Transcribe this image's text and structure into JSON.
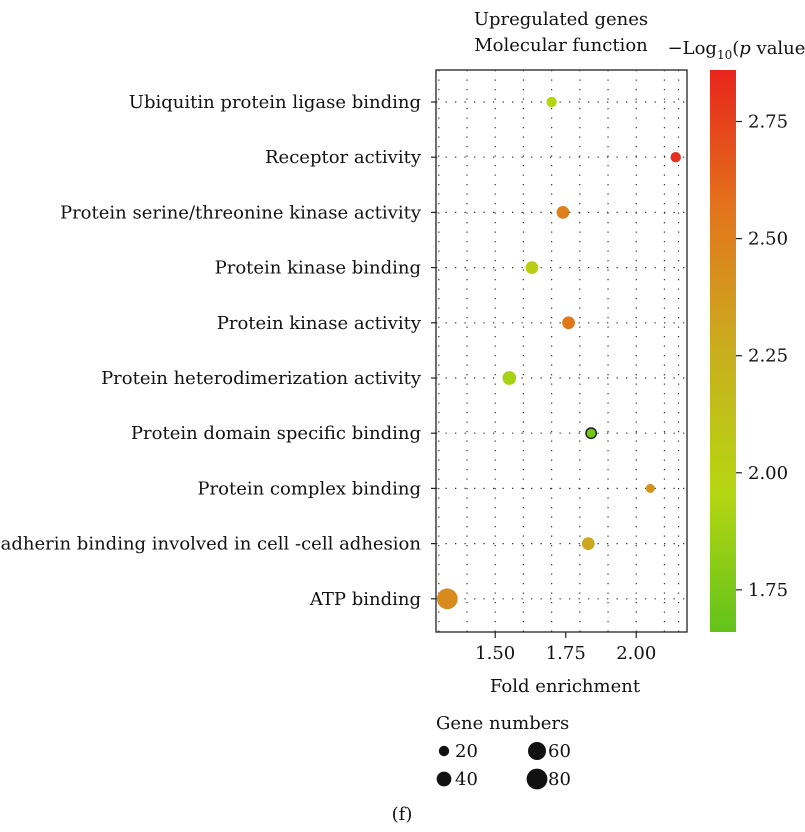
{
  "chart_data": {
    "type": "scatter",
    "title_line1": "Upregulated genes",
    "title_line2": "Molecular function",
    "xlabel": "Fold enrichment",
    "ylabel": "",
    "x_ticks": [
      "1.50",
      "1.75",
      "2.00"
    ],
    "x_tick_values": [
      1.5,
      1.75,
      2.0
    ],
    "xlim": [
      1.29,
      2.18
    ],
    "grid": true,
    "categories": [
      "Ubiquitin protein ligase binding",
      "Receptor activity",
      "Protein serine/threonine kinase activity",
      "Protein kinase binding",
      "Protein kinase activity",
      "Protein heterodimerization activity",
      "Protein domain specific binding",
      "Protein complex binding",
      "Cadherin binding involved in cell -cell adhesion",
      "ATP binding"
    ],
    "points": [
      {
        "category": "Ubiquitin protein ligase binding",
        "x": 1.7,
        "neg_log10_p": 1.95,
        "genes": 20
      },
      {
        "category": "Receptor activity",
        "x": 2.14,
        "neg_log10_p": 2.83,
        "genes": 20
      },
      {
        "category": "Protein serine/threonine kinase activity",
        "x": 1.74,
        "neg_log10_p": 2.5,
        "genes": 30
      },
      {
        "category": "Protein kinase binding",
        "x": 1.63,
        "neg_log10_p": 2.03,
        "genes": 30
      },
      {
        "category": "Protein kinase activity",
        "x": 1.76,
        "neg_log10_p": 2.55,
        "genes": 30
      },
      {
        "category": "Protein heterodimerization activity",
        "x": 1.55,
        "neg_log10_p": 1.9,
        "genes": 35
      },
      {
        "category": "Protein domain specific binding",
        "x": 1.84,
        "neg_log10_p": 1.72,
        "genes": 20
      },
      {
        "category": "Protein complex binding",
        "x": 2.05,
        "neg_log10_p": 2.4,
        "genes": 15
      },
      {
        "category": "Cadherin binding involved in cell -cell adhesion",
        "x": 1.83,
        "neg_log10_p": 2.3,
        "genes": 30
      },
      {
        "category": "ATP binding",
        "x": 1.33,
        "neg_log10_p": 2.45,
        "genes": 80
      }
    ],
    "colorbar": {
      "title_prefix": "−Log",
      "title_sub": "10",
      "title_open": "(",
      "title_italic": "p",
      "title_suffix": " value)",
      "ticks": [
        "2.75",
        "2.50",
        "2.25",
        "2.00",
        "1.75"
      ],
      "tick_values": [
        2.75,
        2.5,
        2.25,
        2.0,
        1.75
      ],
      "range": [
        1.66,
        2.86
      ],
      "colors": [
        "#e8251c",
        "#e2751b",
        "#c9ae1e",
        "#b6d612",
        "#63c21a"
      ]
    },
    "size_legend": {
      "title": "Gene numbers",
      "items": [
        {
          "label": "20",
          "value": 20
        },
        {
          "label": "60",
          "value": 60
        },
        {
          "label": "40",
          "value": 40
        },
        {
          "label": "80",
          "value": 80
        }
      ]
    }
  },
  "panel_label": "(f)"
}
